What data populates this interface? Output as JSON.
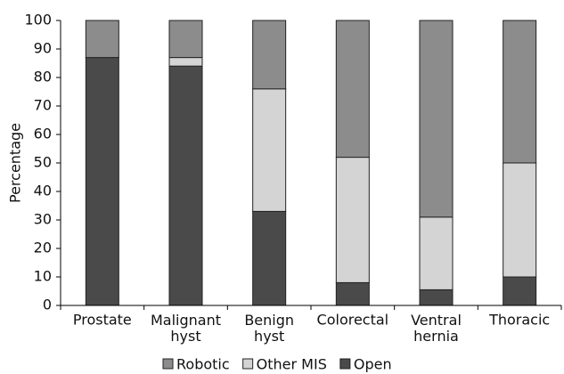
{
  "chart_data": {
    "type": "stacked_bar",
    "categories": [
      "Prostate",
      "Malignant hyst",
      "Benign hyst",
      "Colorectal",
      "Ventral hernia",
      "Thoracic"
    ],
    "ylabel": "Percentage",
    "series": [
      {
        "name": "Robotic",
        "color": "#8c8c8c",
        "values": [
          13,
          13,
          24,
          48,
          69,
          50
        ]
      },
      {
        "name": "Other MIS",
        "color": "#d4d4d4",
        "values": [
          0,
          3,
          43,
          44,
          25.5,
          40
        ]
      },
      {
        "name": "Open",
        "color": "#4a4a4a",
        "values": [
          87,
          84,
          33,
          8,
          5.5,
          10
        ]
      }
    ],
    "stack_order": [
      2,
      1,
      0
    ],
    "ylim": [
      0,
      100
    ],
    "yticks": [
      0,
      10,
      20,
      30,
      40,
      50,
      60,
      70,
      80,
      90,
      100
    ]
  }
}
